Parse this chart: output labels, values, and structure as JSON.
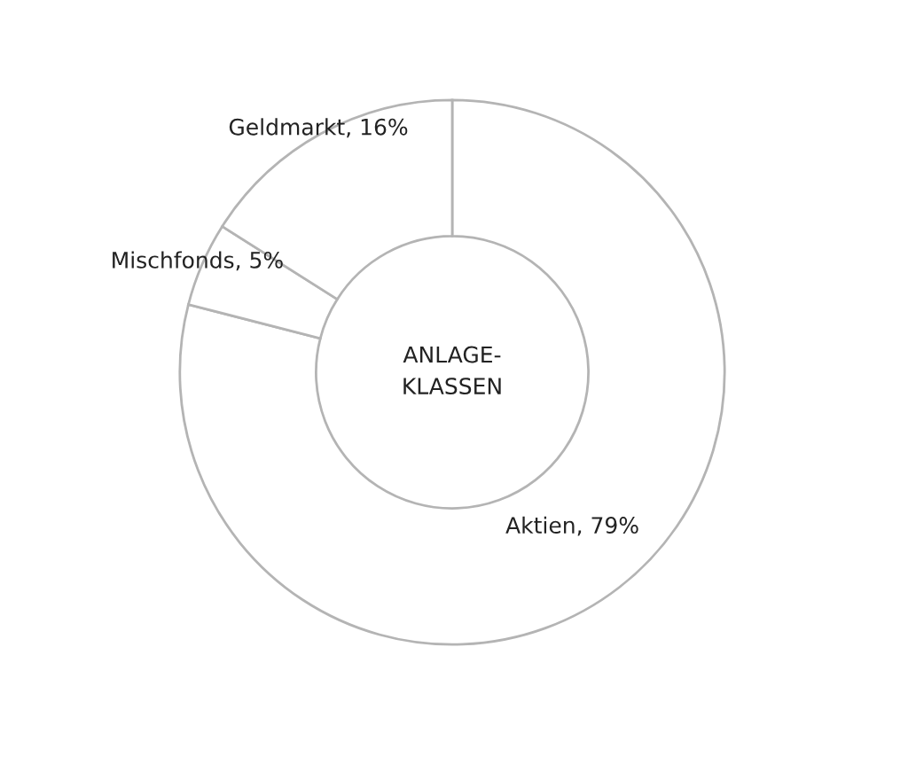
{
  "chart_data": {
    "type": "donut",
    "title": "ANLAGE-\nKLASSEN",
    "categories": [
      "Aktien",
      "Mischfonds",
      "Geldmarkt"
    ],
    "values": [
      79,
      5,
      16
    ],
    "value_labels": [
      "79%",
      "5%",
      "16%"
    ],
    "colors": [
      "#ffffff",
      "#ffffff",
      "#ffffff"
    ],
    "legend": false
  }
}
